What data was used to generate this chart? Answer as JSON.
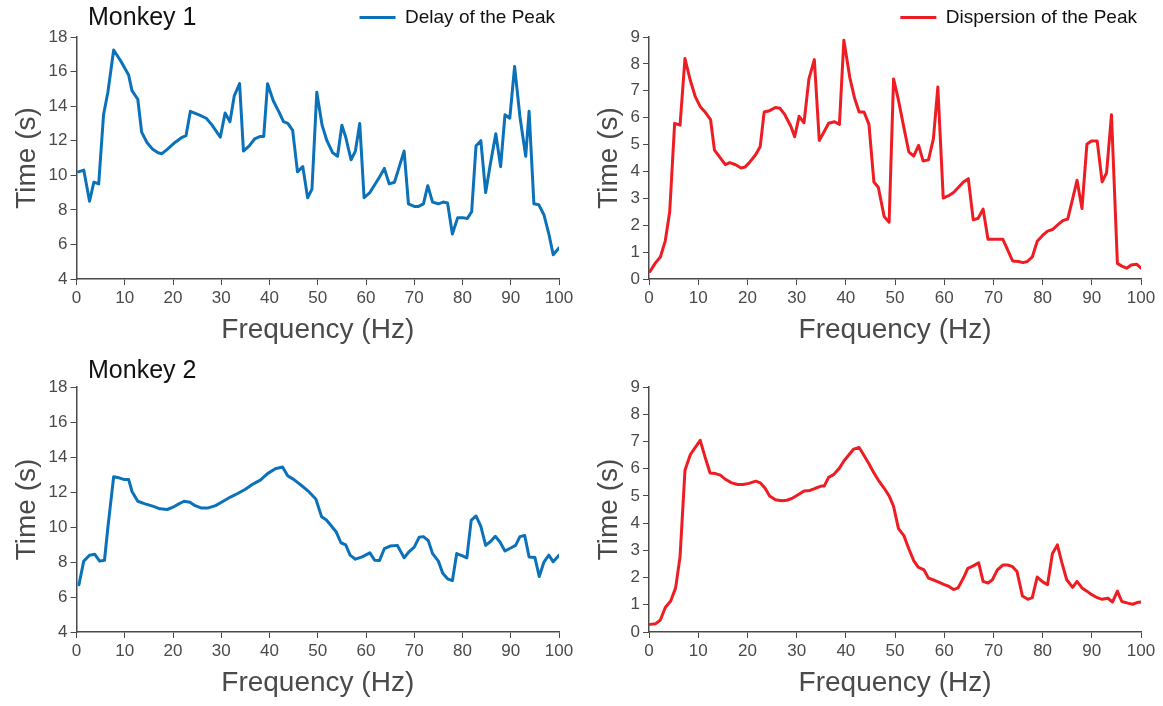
{
  "chart_data": [
    {
      "type": "line",
      "title": "Monkey 1",
      "xlabel": "Frequency (Hz)",
      "ylabel": "Time (s)",
      "xlim": [
        0,
        100
      ],
      "ylim": [
        4,
        18
      ],
      "xticks": [
        0,
        10,
        20,
        30,
        40,
        50,
        60,
        70,
        80,
        90,
        100
      ],
      "yticks": [
        4,
        6,
        8,
        10,
        12,
        14,
        16,
        18
      ],
      "legend": "top right",
      "series": [
        {
          "name": "Delay of the Peak",
          "color": "#0b72b9",
          "x": [
            0.4,
            1.5,
            2.7,
            3.6,
            4.6,
            5.6,
            6.5,
            7.7,
            9.2,
            10.8,
            11.5,
            12.7,
            13.5,
            14.6,
            15.8,
            16.9,
            17.7,
            18.8,
            20.4,
            21.9,
            22.7,
            23.6,
            25.4,
            26.9,
            28.1,
            29.8,
            30.8,
            31.8,
            32.7,
            33.8,
            34.6,
            35.8,
            36.9,
            38.1,
            38.8,
            39.6,
            40.8,
            41.9,
            42.9,
            43.8,
            44.8,
            45.8,
            46.9,
            47.9,
            48.8,
            49.8,
            50.9,
            51.9,
            53.1,
            54.1,
            55,
            55.8,
            56.9,
            57.8,
            58.7,
            59.6,
            60.8,
            61.9,
            62.8,
            63.8,
            64.8,
            65.9,
            66.9,
            67.9,
            68.8,
            70,
            70.9,
            71.9,
            72.8,
            73.8,
            75,
            76,
            76.9,
            77.9,
            79,
            80,
            81,
            81.9,
            82.8,
            83.8,
            84.8,
            85.8,
            86.9,
            87.9,
            88.8,
            89.8,
            90.8,
            91.9,
            93.1,
            93.8,
            94.8,
            95.8,
            96.9,
            97.9,
            98.8,
            100
          ],
          "values": [
            10.2,
            10.3,
            8.5,
            9.6,
            9.5,
            13.5,
            14.8,
            17.25,
            16.6,
            15.8,
            14.9,
            14.4,
            12.5,
            11.9,
            11.5,
            11.3,
            11.25,
            11.5,
            11.9,
            12.2,
            12.3,
            13.7,
            13.5,
            13.3,
            12.9,
            12.2,
            13.6,
            13.1,
            14.6,
            15.3,
            11.4,
            11.7,
            12.1,
            12.25,
            12.25,
            15.3,
            14.3,
            13.7,
            13.1,
            13,
            12.6,
            10.2,
            10.5,
            8.7,
            9.2,
            14.8,
            12.9,
            12,
            11.3,
            11.1,
            12.9,
            12.2,
            10.9,
            11.4,
            13,
            8.7,
            9,
            9.5,
            9.9,
            10.4,
            9.5,
            9.6,
            10.5,
            11.4,
            8.35,
            8.2,
            8.2,
            8.35,
            9.4,
            8.45,
            8.35,
            8.45,
            8.4,
            6.6,
            7.55,
            7.55,
            7.5,
            7.9,
            11.7,
            12,
            9,
            10.7,
            12.4,
            10.5,
            13.5,
            13.3,
            16.3,
            13.4,
            11.1,
            13.7,
            8.35,
            8.3,
            7.7,
            6.6,
            5.4,
            5.8
          ]
        }
      ]
    },
    {
      "type": "line",
      "xlabel": "Frequency (Hz)",
      "ylabel": "Time (s)",
      "xlim": [
        0,
        100
      ],
      "ylim": [
        0,
        9
      ],
      "xticks": [
        0,
        10,
        20,
        30,
        40,
        50,
        60,
        70,
        80,
        90,
        100
      ],
      "yticks": [
        0,
        1,
        2,
        3,
        4,
        5,
        6,
        7,
        8,
        9
      ],
      "legend": "top right",
      "series": [
        {
          "name": "Dispersion of the Peak",
          "color": "#ee1d23",
          "x": [
            0.2,
            1.3,
            2.3,
            3.3,
            4.2,
            5.2,
            6.3,
            7.3,
            8.4,
            9.4,
            10.4,
            11.4,
            12.5,
            13.3,
            14.3,
            15.5,
            16.4,
            17.6,
            18.7,
            19.5,
            20.3,
            21.7,
            22.6,
            23.4,
            24.5,
            25.7,
            26.6,
            27.6,
            28.8,
            29.6,
            30.5,
            31.5,
            32.5,
            33.6,
            34.6,
            35.5,
            36.5,
            37.7,
            38.7,
            39.6,
            40.8,
            41.8,
            42.7,
            43.7,
            44.7,
            45.7,
            46.6,
            47.8,
            48.8,
            49.7,
            50.7,
            51.8,
            52.8,
            53.8,
            54.8,
            55.7,
            56.8,
            57.8,
            58.7,
            59.8,
            60.9,
            61.9,
            62.9,
            63.9,
            64.9,
            65.9,
            66.9,
            67.9,
            68.9,
            70,
            71,
            71.9,
            72.9,
            73.9,
            75.1,
            76,
            76.9,
            77.9,
            78.9,
            79.9,
            81,
            82,
            83,
            84.1,
            85.1,
            86.1,
            87,
            88,
            89,
            89.9,
            91.1,
            92.1,
            93,
            94,
            95.2,
            96.1,
            97.1,
            98,
            99.1,
            100
          ],
          "values": [
            0.28,
            0.6,
            0.82,
            1.42,
            2.5,
            5.79,
            5.72,
            8.2,
            7.38,
            6.78,
            6.41,
            6.21,
            5.93,
            4.79,
            4.55,
            4.25,
            4.33,
            4.25,
            4.13,
            4.16,
            4.31,
            4.63,
            4.93,
            6.21,
            6.26,
            6.38,
            6.35,
            6.11,
            5.69,
            5.29,
            6.05,
            5.81,
            7.44,
            8.16,
            5.15,
            5.45,
            5.79,
            5.85,
            5.75,
            8.88,
            7.5,
            6.71,
            6.21,
            6.21,
            5.75,
            3.61,
            3.41,
            2.32,
            2.11,
            7.44,
            6.65,
            5.63,
            4.73,
            4.57,
            4.97,
            4.39,
            4.43,
            5.21,
            7.14,
            3.01,
            3.1,
            3.22,
            3.41,
            3.61,
            3.73,
            2.2,
            2.26,
            2.6,
            1.48,
            1.48,
            1.48,
            1.48,
            1.08,
            0.67,
            0.65,
            0.61,
            0.65,
            0.82,
            1.4,
            1.6,
            1.78,
            1.84,
            2,
            2.17,
            2.23,
            2.98,
            3.67,
            2.62,
            5.01,
            5.13,
            5.13,
            3.61,
            3.95,
            6.11,
            0.58,
            0.48,
            0.4,
            0.52,
            0.55,
            0.4
          ]
        }
      ]
    },
    {
      "type": "line",
      "title": "Monkey 2",
      "xlabel": "Frequency (Hz)",
      "ylabel": "Time (s)",
      "xlim": [
        0,
        100
      ],
      "ylim": [
        4,
        18
      ],
      "xticks": [
        0,
        10,
        20,
        30,
        40,
        50,
        60,
        70,
        80,
        90,
        100
      ],
      "yticks": [
        4,
        6,
        8,
        10,
        12,
        14,
        16,
        18
      ],
      "series": [
        {
          "color": "#0b72b9",
          "x": [
            0.5,
            1.5,
            2.7,
            3.8,
            4.8,
            5.8,
            6.5,
            7.7,
            8.8,
            9.8,
            10.8,
            11.5,
            12.7,
            14.2,
            15.8,
            17.3,
            18.8,
            20,
            21.2,
            22.3,
            23.5,
            24.6,
            25.8,
            27.3,
            28.8,
            30.4,
            31.9,
            33.5,
            35,
            36.5,
            38.1,
            39.6,
            41.2,
            42.7,
            43.8,
            45,
            46.5,
            48.1,
            49.6,
            50.8,
            51.8,
            52.7,
            53.8,
            54.8,
            55.8,
            56.7,
            57.8,
            59.2,
            60.8,
            61.8,
            62.8,
            63.8,
            65,
            66.5,
            67.9,
            69,
            70,
            71,
            71.9,
            72.9,
            73.8,
            75,
            75.9,
            76.9,
            77.9,
            78.8,
            80,
            80.9,
            81.8,
            82.8,
            83.8,
            84.8,
            85.8,
            86.8,
            87.8,
            88.8,
            90,
            91,
            91.9,
            92.9,
            93.8,
            95,
            95.9,
            96.9,
            97.9,
            98.8,
            100
          ],
          "values": [
            6.7,
            8.05,
            8.39,
            8.44,
            8.05,
            8.1,
            9.97,
            12.87,
            12.81,
            12.72,
            12.72,
            12.03,
            11.47,
            11.32,
            11.19,
            11.04,
            11,
            11.13,
            11.32,
            11.47,
            11.41,
            11.22,
            11.09,
            11.09,
            11.22,
            11.47,
            11.71,
            11.93,
            12.16,
            12.44,
            12.68,
            13.05,
            13.33,
            13.43,
            12.92,
            12.72,
            12.4,
            12.03,
            11.6,
            10.59,
            10.4,
            10.1,
            9.73,
            9.1,
            8.98,
            8.39,
            8.16,
            8.29,
            8.52,
            8.1,
            8.09,
            8.76,
            8.91,
            8.95,
            8.24,
            8.61,
            8.85,
            9.41,
            9.45,
            9.23,
            8.48,
            8.05,
            7.36,
            7.04,
            6.93,
            8.48,
            8.35,
            8.24,
            10.38,
            10.63,
            10.03,
            8.95,
            9.17,
            9.47,
            9.13,
            8.63,
            8.8,
            8.95,
            9.45,
            9.51,
            8.29,
            8.26,
            7.17,
            8.01,
            8.39,
            8.01,
            8.39
          ]
        }
      ]
    },
    {
      "type": "line",
      "xlabel": "Frequency (Hz)",
      "ylabel": "Time (s)",
      "xlim": [
        0,
        100
      ],
      "ylim": [
        0,
        9
      ],
      "xticks": [
        0,
        10,
        20,
        30,
        40,
        50,
        60,
        70,
        80,
        90,
        100
      ],
      "yticks": [
        0,
        1,
        2,
        3,
        4,
        5,
        6,
        7,
        8,
        9
      ],
      "series": [
        {
          "color": "#ee1d23",
          "x": [
            0.2,
            1.3,
            2.3,
            3.3,
            4.4,
            5.4,
            6.3,
            7.3,
            8.4,
            9.4,
            10.4,
            11.4,
            12.4,
            13.5,
            14.5,
            15.6,
            16.8,
            18,
            19.1,
            20.3,
            21.7,
            22.6,
            23.6,
            24.5,
            25.7,
            26.9,
            28,
            29.2,
            30.3,
            31.5,
            32.7,
            33.8,
            35,
            35.6,
            36.5,
            37.5,
            38.7,
            39.6,
            40.6,
            41.6,
            42.7,
            43.7,
            44.7,
            45.6,
            46.6,
            47.8,
            48.8,
            49.7,
            50.7,
            51.8,
            52.8,
            53.8,
            54.7,
            55.9,
            56.8,
            58,
            59,
            60,
            60.9,
            61.9,
            62.8,
            63.9,
            64.8,
            65.8,
            67,
            67.9,
            68.9,
            69.8,
            70.8,
            71.9,
            72.9,
            73.9,
            74.8,
            75.9,
            77,
            77.9,
            78.9,
            80,
            81,
            82,
            83,
            83.9,
            84.9,
            86.1,
            87,
            88,
            89,
            89.9,
            91.1,
            92.1,
            93.3,
            94.2,
            95.2,
            96.1,
            97.3,
            98.3,
            99.2,
            100
          ],
          "values": [
            0.28,
            0.3,
            0.44,
            0.9,
            1.14,
            1.62,
            2.76,
            5.94,
            6.52,
            6.78,
            7.04,
            6.42,
            5.84,
            5.82,
            5.76,
            5.6,
            5.48,
            5.42,
            5.42,
            5.46,
            5.54,
            5.48,
            5.28,
            5,
            4.86,
            4.82,
            4.84,
            4.92,
            5.04,
            5.18,
            5.2,
            5.28,
            5.36,
            5.36,
            5.68,
            5.78,
            6.02,
            6.28,
            6.5,
            6.72,
            6.78,
            6.48,
            6.18,
            5.88,
            5.58,
            5.28,
            5,
            4.62,
            3.8,
            3.54,
            3.06,
            2.62,
            2.38,
            2.28,
            1.98,
            1.9,
            1.82,
            1.74,
            1.68,
            1.56,
            1.62,
            1.98,
            2.34,
            2.42,
            2.54,
            1.86,
            1.8,
            1.92,
            2.28,
            2.46,
            2.46,
            2.4,
            2.22,
            1.32,
            1.2,
            1.26,
            2.02,
            1.84,
            1.74,
            2.88,
            3.2,
            2.56,
            1.92,
            1.64,
            1.86,
            1.62,
            1.5,
            1.38,
            1.26,
            1.2,
            1.24,
            1.1,
            1.5,
            1.12,
            1.06,
            1.02,
            1.08,
            1.1
          ]
        }
      ]
    }
  ]
}
